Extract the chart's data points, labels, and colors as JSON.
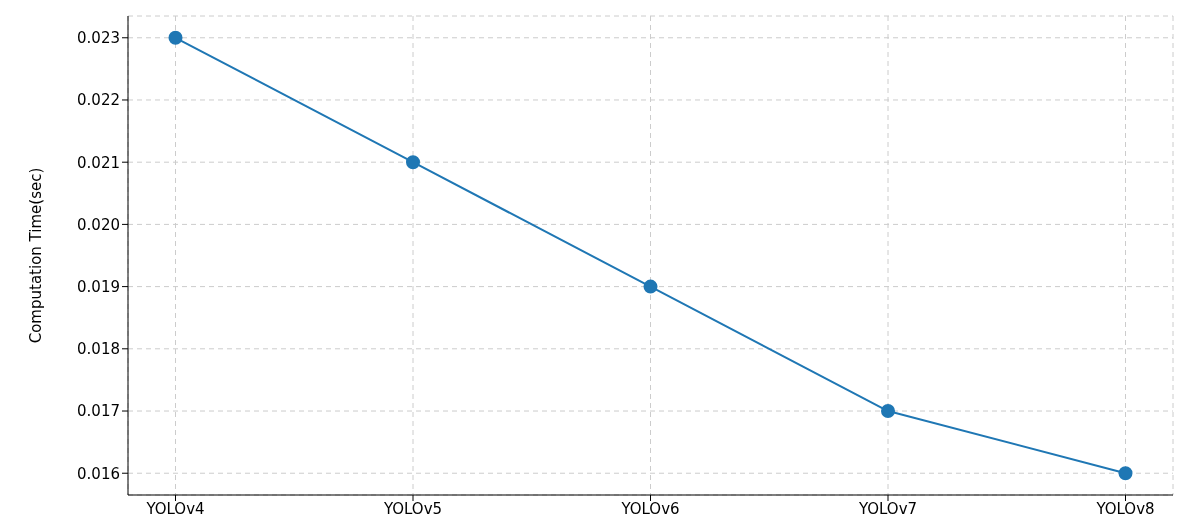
{
  "chart_data": {
    "type": "line",
    "ylabel": "Computation Time(sec)",
    "categories": [
      "YOLOv4",
      "YOLOv5",
      "YOLOv6",
      "YOLOv7",
      "YOLOv8"
    ],
    "series": [
      {
        "color": "#1f77b4",
        "values": [
          0.023,
          0.021,
          0.019,
          0.017,
          0.016
        ]
      }
    ],
    "ylim": [
      0.01565,
      0.02335
    ],
    "yticks": [
      0.016,
      0.017,
      0.018,
      0.019,
      {
        "value": 0.02,
        "label": "0.020"
      },
      0.021,
      0.022,
      0.023
    ],
    "grid": true,
    "marker": "circle",
    "line_style": "solid"
  }
}
